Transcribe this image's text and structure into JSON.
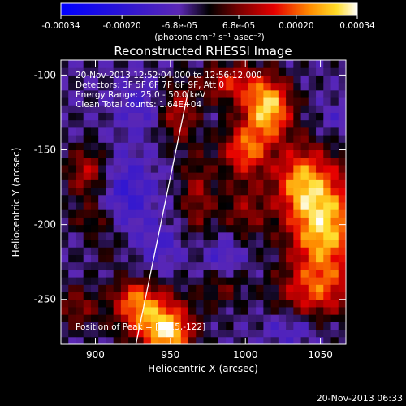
{
  "chart_data": {
    "type": "heatmap",
    "title": "Reconstructed RHESSI Image",
    "xlabel": "Heliocentric X (arcsec)",
    "ylabel": "Heliocentric Y (arcsec)",
    "xlim": [
      877,
      1067
    ],
    "ylim": [
      -280,
      -90
    ],
    "x_ticks": [
      900,
      950,
      1000,
      1050
    ],
    "y_ticks": [
      -100,
      -150,
      -200,
      -250
    ],
    "colorbar": {
      "range": [
        -0.00034,
        0.00034
      ],
      "tick_values": [
        -0.00034,
        -0.0002,
        -6.8e-05,
        6.8e-05,
        0.0002,
        0.00034
      ],
      "tick_labels": [
        "-0.00034",
        "-0.00020",
        "-6.8e-05",
        "6.8e-05",
        "0.00020",
        "0.00034"
      ],
      "units": "(photons cm⁻² s⁻¹ asec⁻²)"
    },
    "annotations": [
      "20-Nov-2013 12:52:04.000 to 12:56:12.000",
      "Detectors: 3F 5F 6F 7F 8F 9F, Att 0",
      "Energy Range: 25.0 - 50.0 keV",
      "Clean     Total counts: 1.64E+04",
      "Position of Peak = [1015,-122]"
    ],
    "limb_line": [
      [
        927,
        -280
      ],
      [
        962,
        -110
      ]
    ],
    "hotspots": [
      {
        "x": 1015,
        "y": -122,
        "v": 0.00034,
        "sx": 11,
        "sy": 14
      },
      {
        "x": 1052,
        "y": -200,
        "v": 0.00034,
        "sx": 16,
        "sy": 28
      },
      {
        "x": 1000,
        "y": -150,
        "v": 0.00024,
        "sx": 11,
        "sy": 12
      },
      {
        "x": 1035,
        "y": -170,
        "v": 0.0002,
        "sx": 12,
        "sy": 16
      },
      {
        "x": 990,
        "y": -105,
        "v": 0.00018,
        "sx": 14,
        "sy": 9
      },
      {
        "x": 1000,
        "y": -190,
        "v": 0.00012,
        "sx": 12,
        "sy": 14
      },
      {
        "x": 1045,
        "y": -245,
        "v": 0.00015,
        "sx": 18,
        "sy": 12
      },
      {
        "x": 985,
        "y": -240,
        "v": 0.0001,
        "sx": 10,
        "sy": 10
      },
      {
        "x": 955,
        "y": -125,
        "v": 0.00016,
        "sx": 9,
        "sy": 14
      },
      {
        "x": 968,
        "y": -180,
        "v": 0.00013,
        "sx": 8,
        "sy": 20
      },
      {
        "x": 895,
        "y": -165,
        "v": 0.00017,
        "sx": 10,
        "sy": 12
      },
      {
        "x": 900,
        "y": -195,
        "v": 0.0001,
        "sx": 12,
        "sy": 8
      },
      {
        "x": 888,
        "y": -255,
        "v": 0.00012,
        "sx": 10,
        "sy": 10
      },
      {
        "x": 940,
        "y": -262,
        "v": 0.00028,
        "sx": 16,
        "sy": 12
      },
      {
        "x": 925,
        "y": -248,
        "v": 0.00016,
        "sx": 10,
        "sy": 9
      },
      {
        "x": 950,
        "y": -275,
        "v": 0.00022,
        "sx": 10,
        "sy": 8
      },
      {
        "x": 910,
        "y": -215,
        "v": 6e-05,
        "sx": 10,
        "sy": 10
      },
      {
        "x": 930,
        "y": -120,
        "v": -8e-05,
        "sx": 12,
        "sy": 12
      },
      {
        "x": 920,
        "y": -180,
        "v": -0.00012,
        "sx": 14,
        "sy": 20
      },
      {
        "x": 945,
        "y": -215,
        "v": -8e-05,
        "sx": 10,
        "sy": 10
      },
      {
        "x": 985,
        "y": -222,
        "v": -0.0001,
        "sx": 10,
        "sy": 10
      },
      {
        "x": 1060,
        "y": -130,
        "v": -6e-05,
        "sx": 8,
        "sy": 10
      },
      {
        "x": 1030,
        "y": -270,
        "v": -8e-05,
        "sx": 12,
        "sy": 8
      }
    ]
  },
  "timestamp": "20-Nov-2013 06:33"
}
